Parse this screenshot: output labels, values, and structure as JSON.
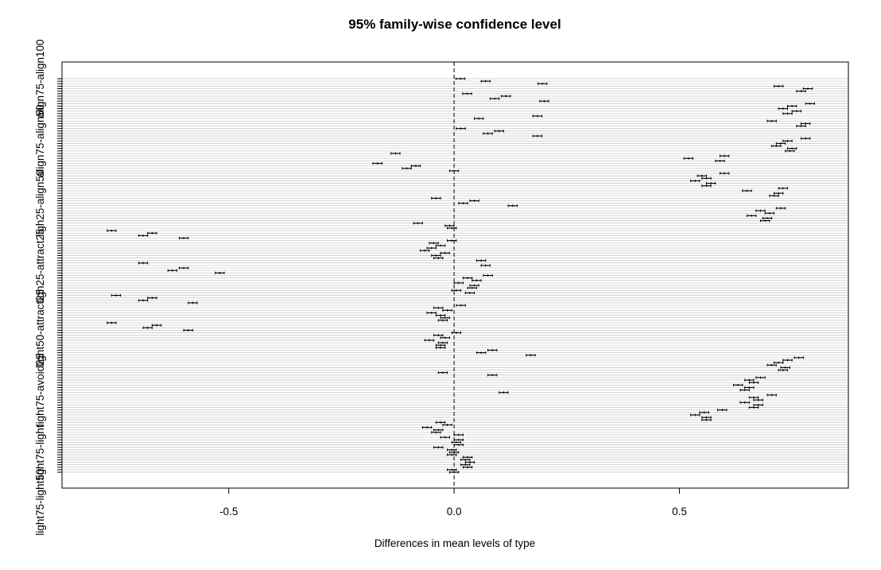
{
  "chart_data": {
    "type": "interval",
    "title": "95% family-wise confidence level",
    "xlabel": "Differences in mean levels of type",
    "ylabel": "",
    "xlim": [
      -0.87,
      0.875
    ],
    "x_ticks": [
      -0.5,
      0.0,
      0.5
    ],
    "x_tick_labels": [
      "-0.5",
      "0.0",
      "0.5"
    ],
    "reference_line_x": 0,
    "grid": true,
    "y_labels_shown": [
      {
        "row": 0,
        "label": "align75-align100"
      },
      {
        "row": 25,
        "label": "align75-align50"
      },
      {
        "row": 50,
        "label": "ligh25-align50"
      },
      {
        "row": 75,
        "label": "ligh25-attract25"
      },
      {
        "row": 100,
        "label": "light50-attract25"
      },
      {
        "row": 125,
        "label": "light75-avoid25"
      },
      {
        "row": 150,
        "label": "light75-light"
      },
      {
        "row": 170,
        "label": "light75-light50"
      }
    ],
    "intervals": [
      {
        "est": 0.014,
        "half": 0.01
      },
      {
        "est": 0.07,
        "half": 0.01
      },
      {
        "est": 0.196,
        "half": 0.01
      },
      {
        "est": 0.72,
        "half": 0.01
      },
      {
        "est": 0.785,
        "half": 0.01
      },
      {
        "est": 0.77,
        "half": 0.01
      },
      {
        "est": 0.029,
        "half": 0.01
      },
      {
        "est": 0.115,
        "half": 0.01
      },
      {
        "est": 0.09,
        "half": 0.01
      },
      {
        "est": 0.2,
        "half": 0.01
      },
      {
        "est": 0.79,
        "half": 0.01
      },
      {
        "est": 0.75,
        "half": 0.01
      },
      {
        "est": 0.73,
        "half": 0.01
      },
      {
        "est": 0.76,
        "half": 0.01
      },
      {
        "est": 0.74,
        "half": 0.01
      },
      {
        "est": 0.185,
        "half": 0.01
      },
      {
        "est": 0.055,
        "half": 0.01
      },
      {
        "est": 0.705,
        "half": 0.01
      },
      {
        "est": 0.78,
        "half": 0.01
      },
      {
        "est": 0.77,
        "half": 0.01
      },
      {
        "est": 0.015,
        "half": 0.01
      },
      {
        "est": 0.1,
        "half": 0.01
      },
      {
        "est": 0.075,
        "half": 0.01
      },
      {
        "est": 0.185,
        "half": 0.01
      },
      {
        "est": 0.78,
        "half": 0.01
      },
      {
        "est": 0.74,
        "half": 0.01
      },
      {
        "est": 0.725,
        "half": 0.01
      },
      {
        "est": 0.715,
        "half": 0.01
      },
      {
        "est": 0.75,
        "half": 0.01
      },
      {
        "est": 0.745,
        "half": 0.01
      },
      {
        "est": -0.13,
        "half": 0.01
      },
      {
        "est": 0.6,
        "half": 0.01
      },
      {
        "est": 0.52,
        "half": 0.01
      },
      {
        "est": 0.59,
        "half": 0.01
      },
      {
        "est": -0.17,
        "half": 0.01
      },
      {
        "est": -0.085,
        "half": 0.01
      },
      {
        "est": -0.105,
        "half": 0.01
      },
      {
        "est": 0.0,
        "half": 0.01
      },
      {
        "est": 0.6,
        "half": 0.01
      },
      {
        "est": 0.55,
        "half": 0.01
      },
      {
        "est": 0.56,
        "half": 0.01
      },
      {
        "est": 0.535,
        "half": 0.01
      },
      {
        "est": 0.57,
        "half": 0.01
      },
      {
        "est": 0.56,
        "half": 0.01
      },
      {
        "est": 0.73,
        "half": 0.01
      },
      {
        "est": 0.65,
        "half": 0.01
      },
      {
        "est": 0.72,
        "half": 0.01
      },
      {
        "est": 0.71,
        "half": 0.01
      },
      {
        "est": -0.04,
        "half": 0.01
      },
      {
        "est": 0.045,
        "half": 0.01
      },
      {
        "est": 0.02,
        "half": 0.01
      },
      {
        "est": 0.13,
        "half": 0.01
      },
      {
        "est": 0.725,
        "half": 0.01
      },
      {
        "est": 0.68,
        "half": 0.01
      },
      {
        "est": 0.7,
        "half": 0.01
      },
      {
        "est": 0.66,
        "half": 0.01
      },
      {
        "est": 0.695,
        "half": 0.01
      },
      {
        "est": 0.69,
        "half": 0.01
      },
      {
        "est": -0.08,
        "half": 0.01
      },
      {
        "est": -0.01,
        "half": 0.01
      },
      {
        "est": -0.005,
        "half": 0.01
      },
      {
        "est": -0.76,
        "half": 0.01
      },
      {
        "est": -0.67,
        "half": 0.01
      },
      {
        "est": -0.69,
        "half": 0.01
      },
      {
        "est": -0.6,
        "half": 0.01
      },
      {
        "est": -0.005,
        "half": 0.01
      },
      {
        "est": -0.045,
        "half": 0.01
      },
      {
        "est": -0.03,
        "half": 0.01
      },
      {
        "est": -0.05,
        "half": 0.01
      },
      {
        "est": -0.065,
        "half": 0.01
      },
      {
        "est": -0.02,
        "half": 0.01
      },
      {
        "est": -0.04,
        "half": 0.01
      },
      {
        "est": -0.035,
        "half": 0.01
      },
      {
        "est": 0.06,
        "half": 0.01
      },
      {
        "est": -0.69,
        "half": 0.01
      },
      {
        "est": 0.07,
        "half": 0.01
      },
      {
        "est": -0.6,
        "half": 0.01
      },
      {
        "est": -0.625,
        "half": 0.01
      },
      {
        "est": -0.52,
        "half": 0.01
      },
      {
        "est": 0.075,
        "half": 0.01
      },
      {
        "est": 0.03,
        "half": 0.01
      },
      {
        "est": 0.05,
        "half": 0.01
      },
      {
        "est": 0.01,
        "half": 0.01
      },
      {
        "est": 0.045,
        "half": 0.01
      },
      {
        "est": 0.04,
        "half": 0.01
      },
      {
        "est": 0.005,
        "half": 0.01
      },
      {
        "est": 0.035,
        "half": 0.01
      },
      {
        "est": -0.75,
        "half": 0.01
      },
      {
        "est": -0.67,
        "half": 0.01
      },
      {
        "est": -0.69,
        "half": 0.01
      },
      {
        "est": -0.58,
        "half": 0.01
      },
      {
        "est": 0.015,
        "half": 0.01
      },
      {
        "est": -0.035,
        "half": 0.01
      },
      {
        "est": -0.015,
        "half": 0.01
      },
      {
        "est": -0.05,
        "half": 0.01
      },
      {
        "est": -0.03,
        "half": 0.01
      },
      {
        "est": -0.02,
        "half": 0.01
      },
      {
        "est": -0.025,
        "half": 0.01
      },
      {
        "est": -0.76,
        "half": 0.01
      },
      {
        "est": -0.66,
        "half": 0.01
      },
      {
        "est": -0.68,
        "half": 0.01
      },
      {
        "est": -0.59,
        "half": 0.01
      },
      {
        "est": 0.005,
        "half": 0.01
      },
      {
        "est": -0.035,
        "half": 0.01
      },
      {
        "est": -0.02,
        "half": 0.01
      },
      {
        "est": -0.055,
        "half": 0.01
      },
      {
        "est": -0.025,
        "half": 0.01
      },
      {
        "est": -0.03,
        "half": 0.01
      },
      {
        "est": -0.03,
        "half": 0.01
      },
      {
        "est": 0.085,
        "half": 0.01
      },
      {
        "est": 0.06,
        "half": 0.01
      },
      {
        "est": 0.17,
        "half": 0.01
      },
      {
        "est": 0.765,
        "half": 0.01
      },
      {
        "est": 0.74,
        "half": 0.01
      },
      {
        "est": 0.72,
        "half": 0.01
      },
      {
        "est": 0.705,
        "half": 0.01
      },
      {
        "est": 0.735,
        "half": 0.01
      },
      {
        "est": 0.73,
        "half": 0.01
      },
      {
        "est": -0.025,
        "half": 0.01
      },
      {
        "est": 0.085,
        "half": 0.01
      },
      {
        "est": 0.68,
        "half": 0.01
      },
      {
        "est": 0.655,
        "half": 0.01
      },
      {
        "est": 0.665,
        "half": 0.01
      },
      {
        "est": 0.63,
        "half": 0.01
      },
      {
        "est": 0.655,
        "half": 0.01
      },
      {
        "est": 0.645,
        "half": 0.01
      },
      {
        "est": 0.11,
        "half": 0.01
      },
      {
        "est": 0.705,
        "half": 0.01
      },
      {
        "est": 0.665,
        "half": 0.01
      },
      {
        "est": 0.675,
        "half": 0.01
      },
      {
        "est": 0.645,
        "half": 0.01
      },
      {
        "est": 0.675,
        "half": 0.01
      },
      {
        "est": 0.665,
        "half": 0.01
      },
      {
        "est": 0.595,
        "half": 0.01
      },
      {
        "est": 0.555,
        "half": 0.01
      },
      {
        "est": 0.535,
        "half": 0.01
      },
      {
        "est": 0.56,
        "half": 0.01
      },
      {
        "est": 0.56,
        "half": 0.01
      },
      {
        "est": -0.03,
        "half": 0.01
      },
      {
        "est": -0.015,
        "half": 0.01
      },
      {
        "est": -0.06,
        "half": 0.01
      },
      {
        "est": -0.035,
        "half": 0.01
      },
      {
        "est": -0.04,
        "half": 0.01
      },
      {
        "est": 0.01,
        "half": 0.01
      },
      {
        "est": -0.02,
        "half": 0.01
      },
      {
        "est": 0.01,
        "half": 0.01
      },
      {
        "est": 0.005,
        "half": 0.01
      },
      {
        "est": 0.01,
        "half": 0.01
      },
      {
        "est": -0.035,
        "half": 0.01
      },
      {
        "est": -0.005,
        "half": 0.01
      },
      {
        "est": 0.0,
        "half": 0.01
      },
      {
        "est": -0.005,
        "half": 0.01
      },
      {
        "est": 0.03,
        "half": 0.01
      },
      {
        "est": 0.025,
        "half": 0.01
      },
      {
        "est": 0.035,
        "half": 0.01
      },
      {
        "est": 0.025,
        "half": 0.01
      },
      {
        "est": 0.03,
        "half": 0.01
      },
      {
        "est": -0.005,
        "half": 0.01
      },
      {
        "est": 0.0,
        "half": 0.01
      }
    ]
  }
}
